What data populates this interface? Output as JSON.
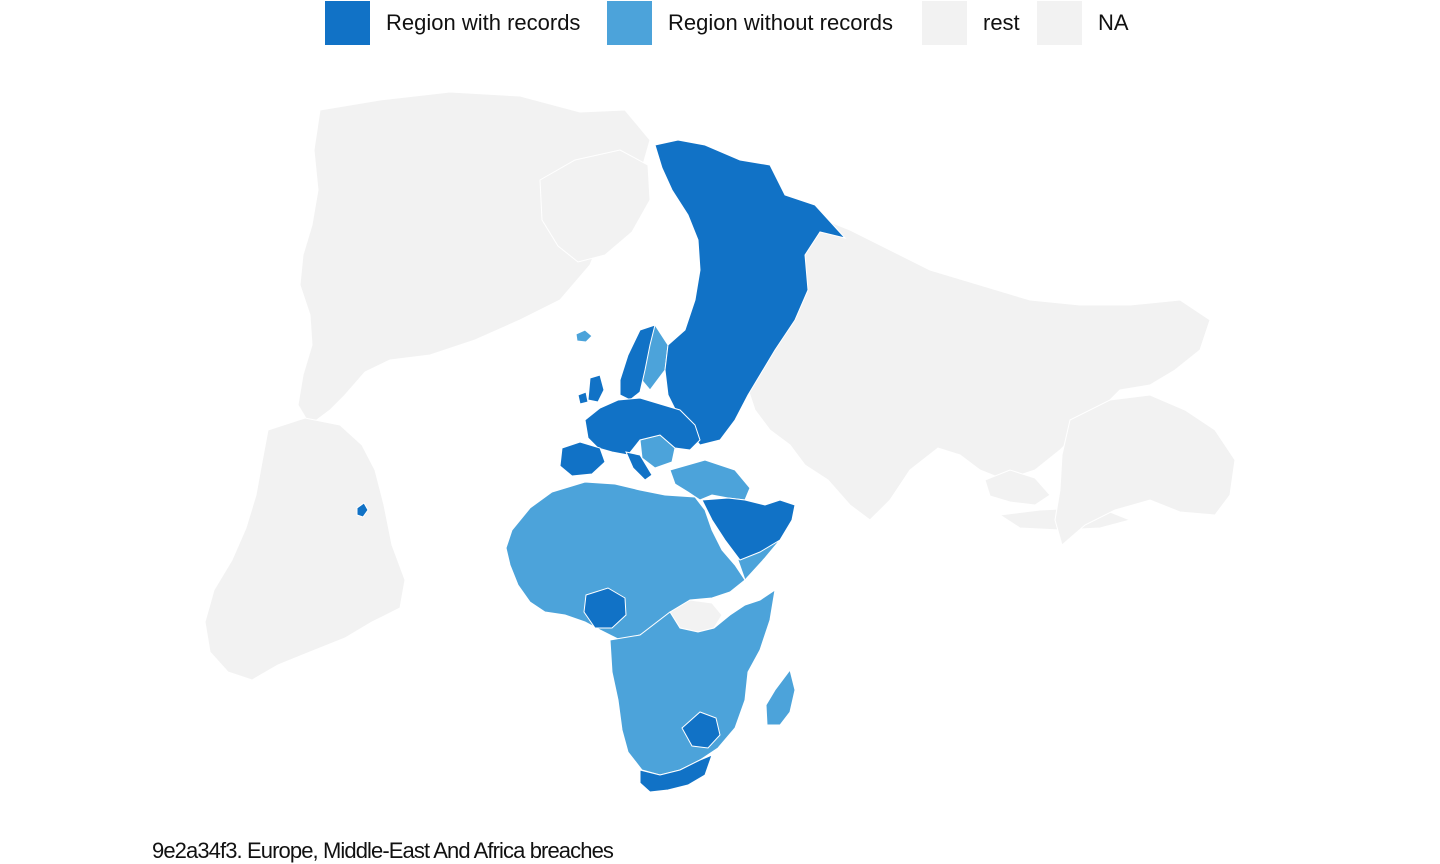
{
  "legend": {
    "items": [
      {
        "label": "Region with records",
        "color": "#1172c6"
      },
      {
        "label": "Region without records",
        "color": "#4ca3da"
      },
      {
        "label": "rest",
        "color": "#f2f2f2"
      },
      {
        "label": "NA",
        "color": "#f2f2f2"
      }
    ]
  },
  "map": {
    "projection": "orthographic-style world view centered on Europe, Middle East and Africa",
    "border_color": "#ffffff",
    "background_land_color": "#f2f2f2"
  },
  "caption": {
    "text": "9e2a34f3. Europe, Middle-East And Africa breaches"
  }
}
